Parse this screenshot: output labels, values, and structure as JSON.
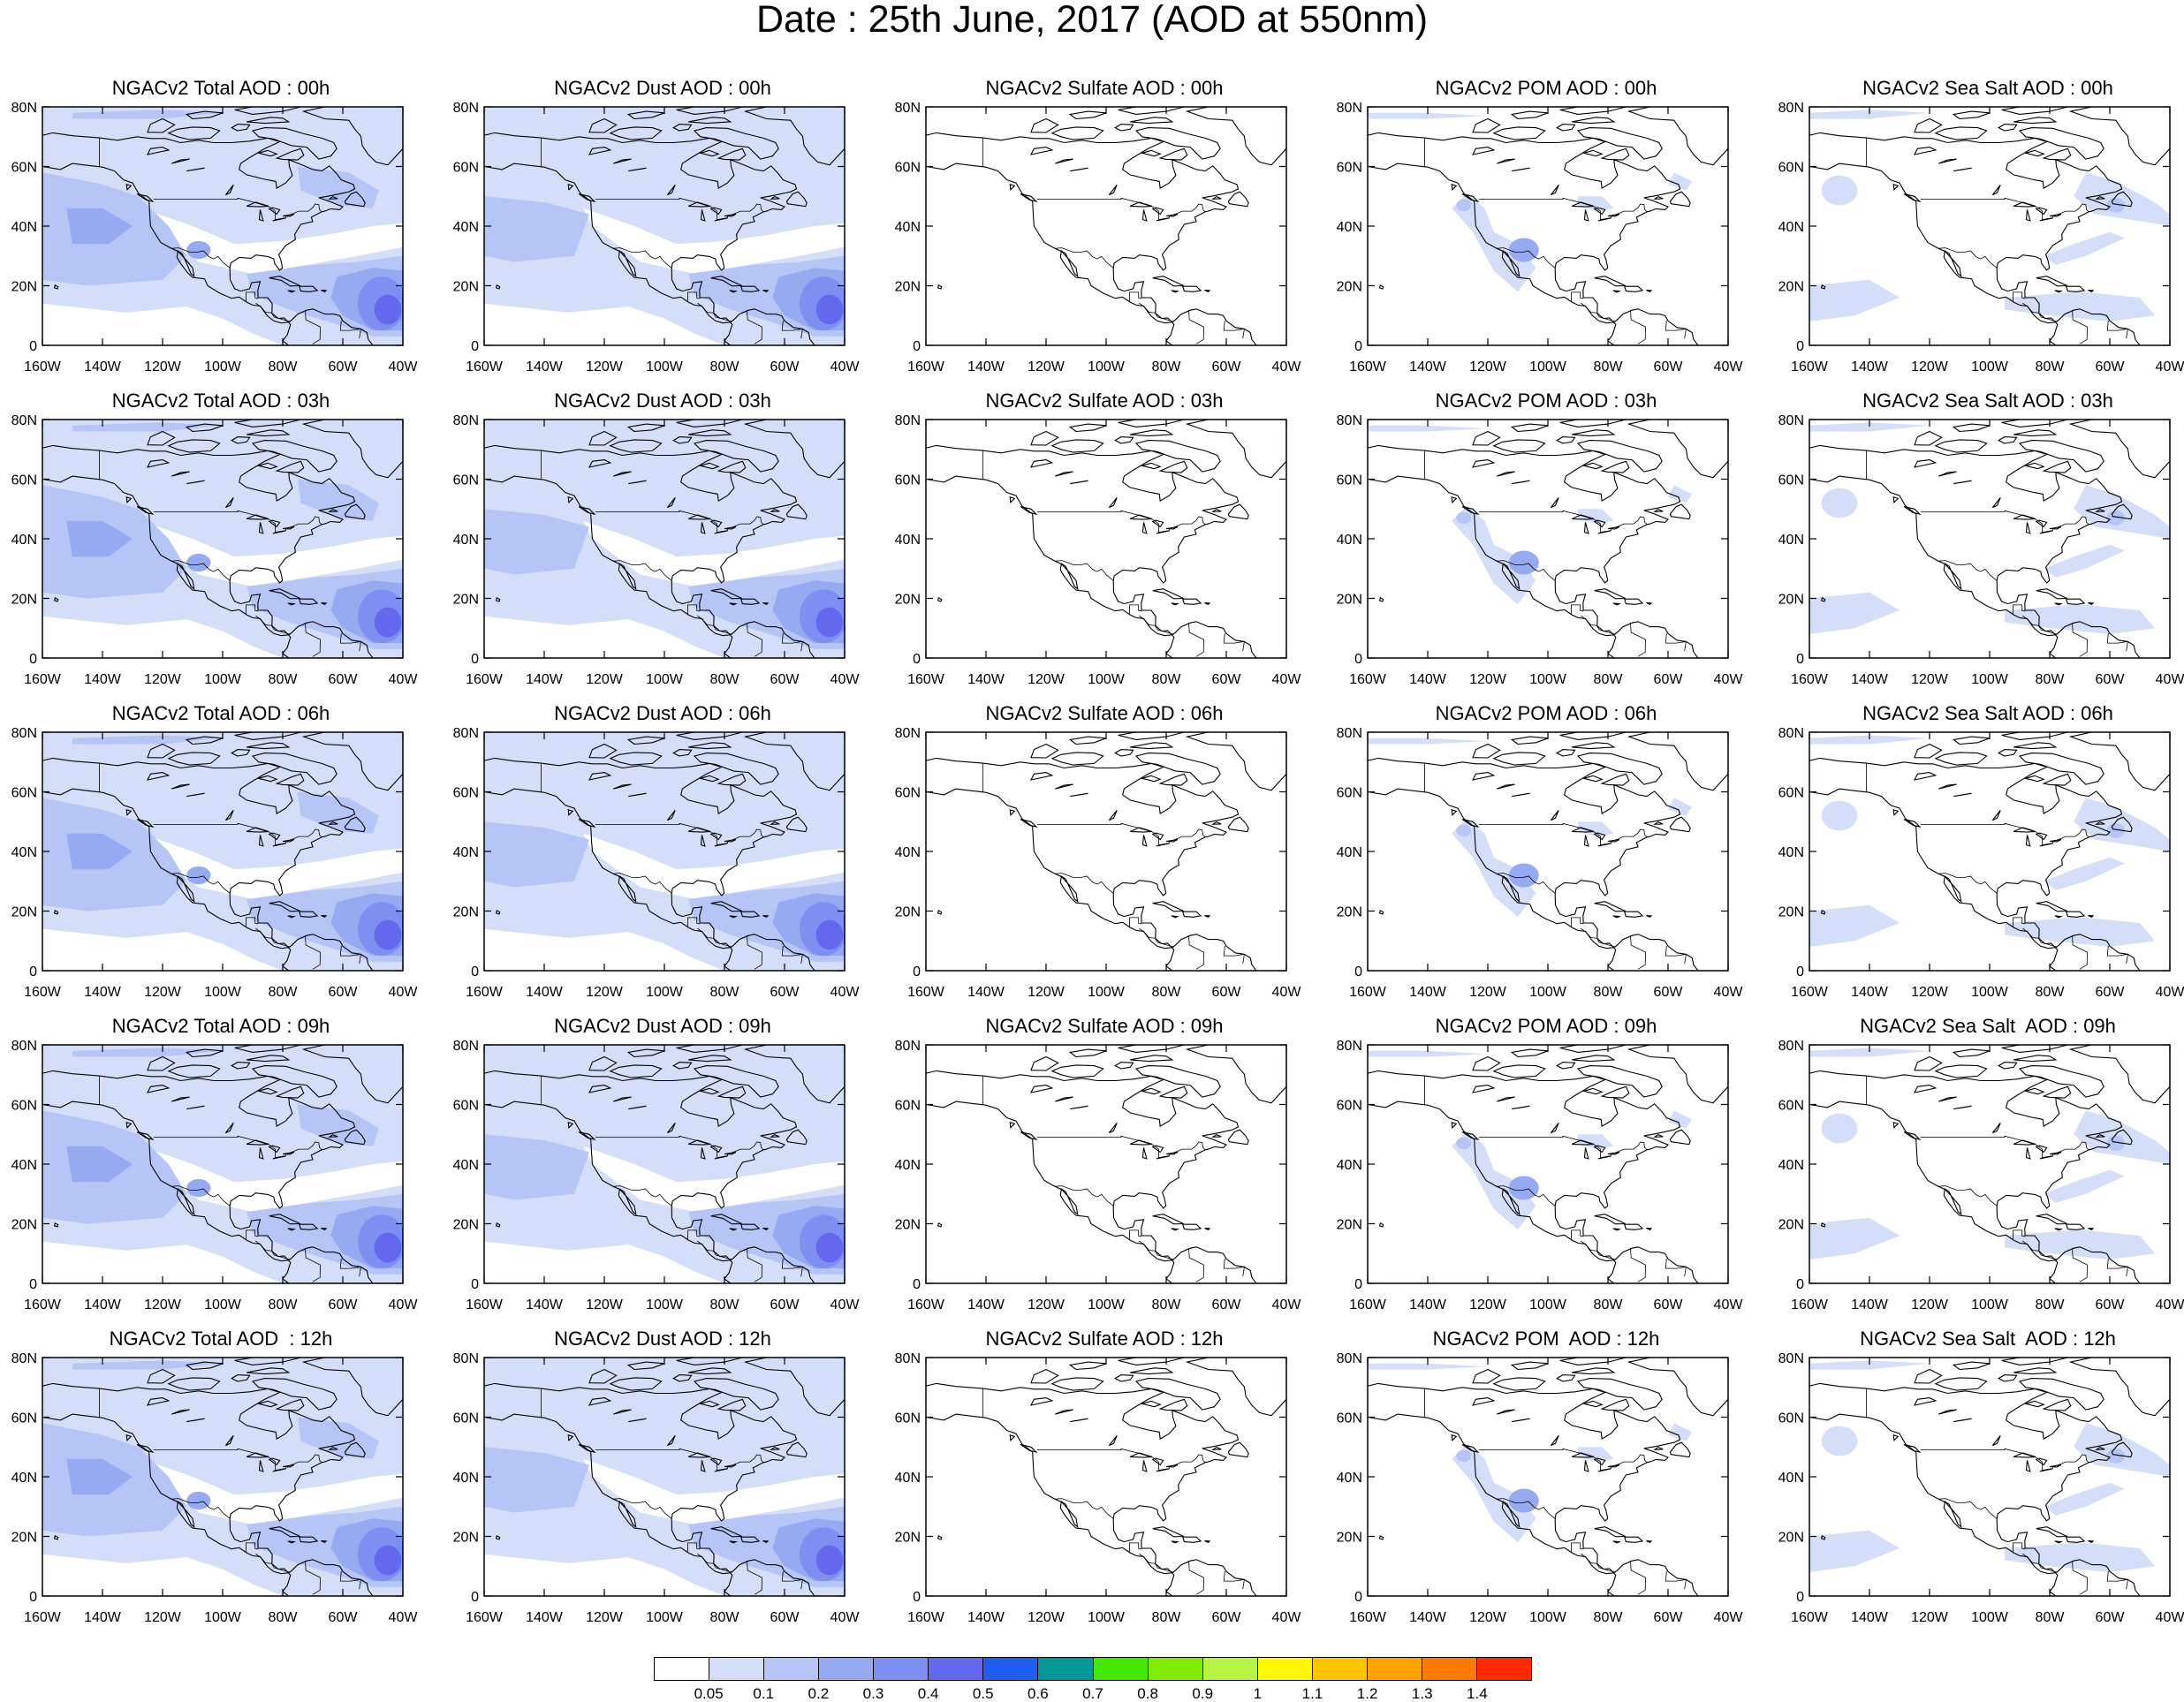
{
  "title": "Date : 25th June, 2017 (AOD at 550nm)",
  "axes": {
    "lon_ticks": [
      "160W",
      "140W",
      "120W",
      "100W",
      "80W",
      "60W",
      "40W"
    ],
    "lat_ticks": [
      "0",
      "20N",
      "40N",
      "60N",
      "80N"
    ],
    "lon_range": [
      -160,
      -40
    ],
    "lat_range": [
      0,
      80
    ]
  },
  "panels": [
    {
      "title": "NGACv2 Total AOD : 00h",
      "variable": "total",
      "hour": "00h"
    },
    {
      "title": "NGACv2 Dust AOD : 00h",
      "variable": "dust",
      "hour": "00h"
    },
    {
      "title": "NGACv2 Sulfate AOD : 00h",
      "variable": "sulfate",
      "hour": "00h"
    },
    {
      "title": "NGACv2 POM AOD : 00h",
      "variable": "pom",
      "hour": "00h"
    },
    {
      "title": "NGACv2 Sea Salt AOD : 00h",
      "variable": "seasalt",
      "hour": "00h"
    },
    {
      "title": "NGACv2 Total AOD : 03h",
      "variable": "total",
      "hour": "03h"
    },
    {
      "title": "NGACv2 Dust AOD : 03h",
      "variable": "dust",
      "hour": "03h"
    },
    {
      "title": "NGACv2 Sulfate AOD : 03h",
      "variable": "sulfate",
      "hour": "03h"
    },
    {
      "title": "NGACv2 POM AOD : 03h",
      "variable": "pom",
      "hour": "03h"
    },
    {
      "title": "NGACv2 Sea Salt AOD : 03h",
      "variable": "seasalt",
      "hour": "03h"
    },
    {
      "title": "NGACv2 Total AOD : 06h",
      "variable": "total",
      "hour": "06h"
    },
    {
      "title": "NGACv2 Dust AOD : 06h",
      "variable": "dust",
      "hour": "06h"
    },
    {
      "title": "NGACv2 Sulfate AOD : 06h",
      "variable": "sulfate",
      "hour": "06h"
    },
    {
      "title": "NGACv2 POM AOD : 06h",
      "variable": "pom",
      "hour": "06h"
    },
    {
      "title": "NGACv2 Sea Salt AOD : 06h",
      "variable": "seasalt",
      "hour": "06h"
    },
    {
      "title": "NGACv2 Total AOD : 09h",
      "variable": "total",
      "hour": "09h"
    },
    {
      "title": "NGACv2 Dust AOD : 09h",
      "variable": "dust",
      "hour": "09h"
    },
    {
      "title": "NGACv2 Sulfate AOD : 09h",
      "variable": "sulfate",
      "hour": "09h"
    },
    {
      "title": "NGACv2 POM AOD : 09h",
      "variable": "pom",
      "hour": "09h"
    },
    {
      "title": "NGACv2 Sea Salt  AOD : 09h",
      "variable": "seasalt",
      "hour": "09h"
    },
    {
      "title": "NGACv2 Total AOD  : 12h",
      "variable": "total",
      "hour": "12h"
    },
    {
      "title": "NGACv2 Dust AOD : 12h",
      "variable": "dust",
      "hour": "12h"
    },
    {
      "title": "NGACv2 Sulfate AOD : 12h",
      "variable": "sulfate",
      "hour": "12h"
    },
    {
      "title": "NGACv2 POM  AOD : 12h",
      "variable": "pom",
      "hour": "12h"
    },
    {
      "title": "NGACv2 Sea Salt  AOD : 12h",
      "variable": "seasalt",
      "hour": "12h"
    }
  ],
  "colorbar": {
    "colors": [
      "#ffffff",
      "#d4def8",
      "#b5c5f5",
      "#96aaf2",
      "#7d8ff0",
      "#6468ec",
      "#1f5cf0",
      "#009898",
      "#44e800",
      "#7fee00",
      "#b8f445",
      "#fff700",
      "#ffc600",
      "#ffa300",
      "#ff7a00",
      "#ff2a00"
    ],
    "labels": [
      "0.05",
      "0.1",
      "0.2",
      "0.3",
      "0.4",
      "0.5",
      "0.6",
      "0.7",
      "0.8",
      "0.9",
      "1",
      "1.1",
      "1.2",
      "1.3",
      "1.4"
    ]
  }
}
